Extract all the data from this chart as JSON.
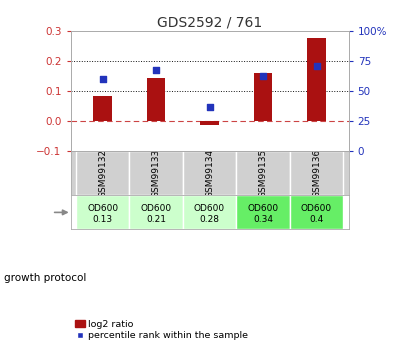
{
  "title": "GDS2592 / 761",
  "samples": [
    "GSM99132",
    "GSM99133",
    "GSM99134",
    "GSM99135",
    "GSM99136"
  ],
  "log2_ratio": [
    0.083,
    0.143,
    -0.013,
    0.16,
    0.278
  ],
  "percentile_rank_right": [
    60,
    68,
    37,
    63,
    71
  ],
  "growth_protocol_label": "growth protocol",
  "protocol_lines": [
    [
      "OD600",
      "0.13"
    ],
    [
      "OD600",
      "0.21"
    ],
    [
      "OD600",
      "0.28"
    ],
    [
      "OD600",
      "0.34"
    ],
    [
      "OD600",
      "0.4"
    ]
  ],
  "protocol_colors": [
    "#ccffcc",
    "#ccffcc",
    "#ccffcc",
    "#66ee66",
    "#66ee66"
  ],
  "bar_color": "#aa1111",
  "dot_color": "#2233bb",
  "ylim_left": [
    -0.1,
    0.3
  ],
  "ylim_right": [
    0,
    100
  ],
  "yticks_left": [
    -0.1,
    0.0,
    0.1,
    0.2,
    0.3
  ],
  "yticks_right": [
    0,
    25,
    50,
    75,
    100
  ],
  "zero_line_color": "#cc4444",
  "dot_line_color": "#111111",
  "background_color": "#ffffff",
  "legend_bar_label": "log2 ratio",
  "legend_dot_label": "percentile rank within the sample",
  "title_color": "#333333",
  "left_tick_color": "#cc3333",
  "right_tick_color": "#2233bb",
  "cell_gray": "#d0d0d0",
  "cell_border": "#ffffff",
  "bar_width": 0.35
}
